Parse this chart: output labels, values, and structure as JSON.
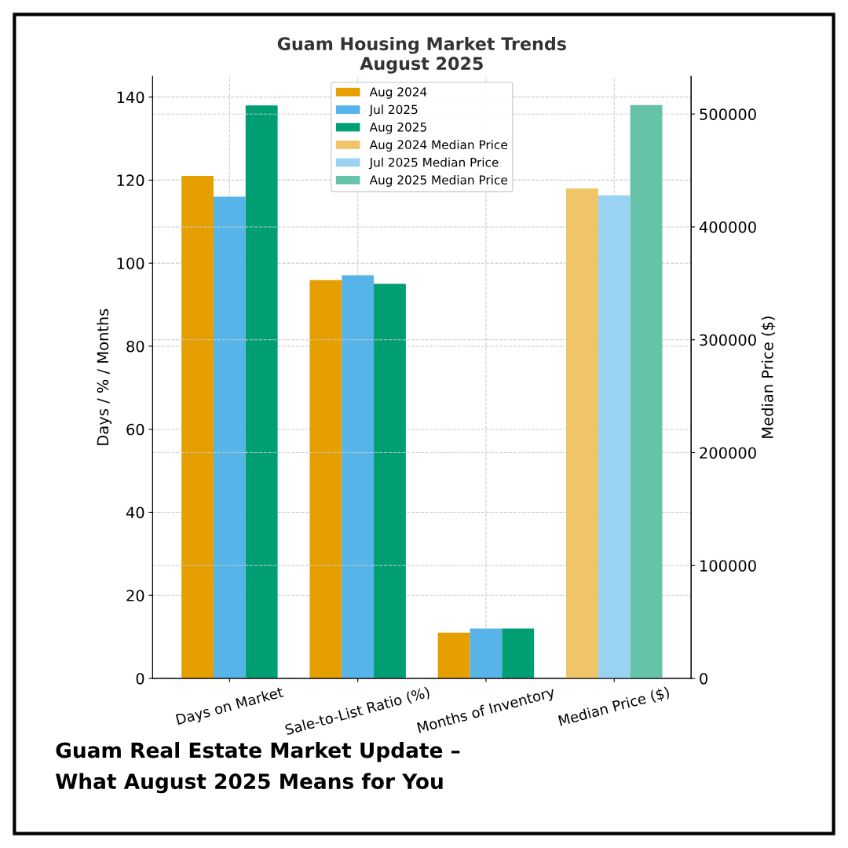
{
  "chart_data": {
    "type": "bar",
    "title": "Guam Housing Market Trends\nAugust 2025",
    "categories": [
      "Days on Market",
      "Sale-to-List Ratio (%)",
      "Months of Inventory",
      "Median Price ($)"
    ],
    "series": [
      {
        "name": "Aug 2024",
        "color": "#e69f00",
        "values": [
          121,
          95.9,
          11.0,
          null
        ]
      },
      {
        "name": "Jul 2025",
        "color": "#56b4e9",
        "values": [
          116,
          97.1,
          12.0,
          null
        ]
      },
      {
        "name": "Aug 2025",
        "color": "#009e73",
        "values": [
          138,
          95.0,
          12.0,
          null
        ]
      },
      {
        "name": "Aug 2024 Median Price",
        "color": "#efc567",
        "axis": "y2",
        "values": [
          null,
          null,
          null,
          434000
        ]
      },
      {
        "name": "Jul 2025 Median Price",
        "color": "#9ad2f1",
        "axis": "y2",
        "values": [
          null,
          null,
          null,
          428000
        ]
      },
      {
        "name": "Aug 2025 Median Price",
        "color": "#66c2a8",
        "axis": "y2",
        "values": [
          null,
          null,
          null,
          508000
        ]
      }
    ],
    "ylabel": "Days / % / Months",
    "y2label": "Median Price ($)",
    "ylim": [
      0,
      145
    ],
    "yticks": [
      0,
      20,
      40,
      60,
      80,
      100,
      120,
      140
    ],
    "y2lim": [
      0,
      533400
    ],
    "y2ticks": [
      0,
      100000,
      200000,
      300000,
      400000,
      500000
    ],
    "grid": true,
    "legend": "top",
    "annotations": [
      "Guam Real Estate Market Update –\nWhat August 2025 Means for You"
    ]
  }
}
